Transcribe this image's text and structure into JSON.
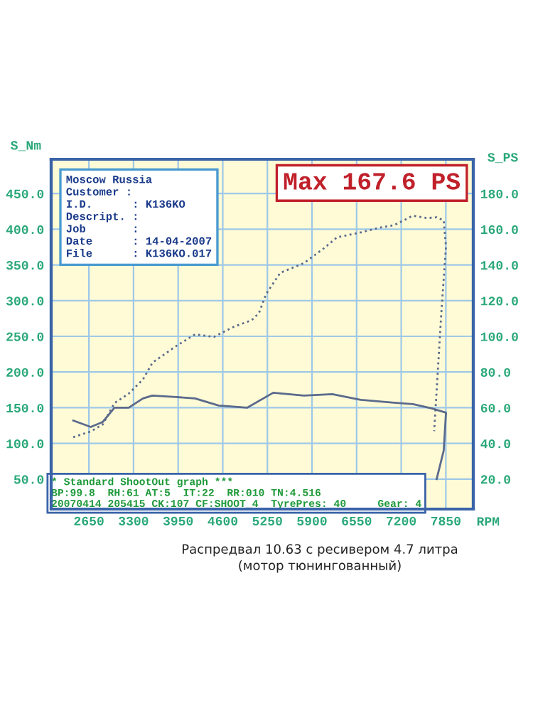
{
  "chart_data": {
    "type": "line",
    "xlabel": "RPM",
    "ylabel": "S_Nm",
    "y2label": "S_PS",
    "xlim": [
      2100,
      8250
    ],
    "xticks": [
      2650,
      3300,
      3950,
      4600,
      5250,
      5900,
      6550,
      7200,
      7850
    ],
    "ylim": [
      8,
      498
    ],
    "yticks": [
      {
        "value": 50,
        "label": "50.0"
      },
      {
        "value": 100,
        "label": "100.0"
      },
      {
        "value": 150,
        "label": "150.0"
      },
      {
        "value": 200,
        "label": "200.0"
      },
      {
        "value": 250,
        "label": "250.0"
      },
      {
        "value": 300,
        "label": "300.0"
      },
      {
        "value": 350,
        "label": "350.0"
      },
      {
        "value": 400,
        "label": "400.0"
      },
      {
        "value": 450,
        "label": "450.0"
      }
    ],
    "y2lim": [
      3.2,
      199.2
    ],
    "y2ticks": [
      {
        "value": 20,
        "label": "20.0"
      },
      {
        "value": 40,
        "label": "40.0"
      },
      {
        "value": 60,
        "label": "60.0"
      },
      {
        "value": 80,
        "label": "80.0"
      },
      {
        "value": 100,
        "label": "100.0"
      },
      {
        "value": 120,
        "label": "120.0"
      },
      {
        "value": 140,
        "label": "140.0"
      },
      {
        "value": 160,
        "label": "160.0"
      },
      {
        "value": 180,
        "label": "180.0"
      }
    ],
    "grid": true,
    "marker": "none",
    "series": [
      {
        "color": "#5b6a8c",
        "axis": "y2",
        "line_style": "dotted",
        "x": [
          2422,
          2677,
          2851,
          3023,
          3230,
          3437,
          3575,
          3919,
          4196,
          4472,
          4747,
          5024,
          5128,
          5231,
          5438,
          5782,
          6059,
          6266,
          6610,
          6887,
          7094,
          7370,
          7577,
          7716,
          7819,
          7852,
          7784,
          7680
        ],
        "values": [
          43.5,
          46.7,
          50.6,
          62.6,
          67.9,
          75.8,
          85.2,
          94.5,
          101.1,
          99.7,
          105.1,
          109.1,
          113.1,
          123.7,
          135.6,
          141.0,
          148.9,
          155.5,
          158.2,
          160.9,
          162.2,
          167.6,
          166.2,
          166.7,
          164.9,
          150.3,
          113.0,
          46.9
        ]
      },
      {
        "color": "#5b6a8c",
        "axis": "y",
        "line_style": "solid",
        "x": [
          2422,
          2677,
          2851,
          3023,
          3230,
          3437,
          3575,
          3919,
          4196,
          4540,
          4954,
          5335,
          5782,
          6196,
          6610,
          7094,
          7370,
          7645,
          7852,
          7819,
          7716
        ],
        "values": [
          132,
          123,
          130,
          150,
          150,
          163,
          167,
          165,
          163,
          153,
          150,
          171,
          167,
          169,
          161,
          157,
          155,
          149,
          143,
          90,
          50
        ]
      }
    ],
    "annotations": [
      "Moscow Russia",
      "Customer :",
      "I.D.      : K136KO",
      "Descript. :",
      "Job       :",
      "Date      : 14-04-2007",
      "File      : K136KO.017",
      "Max 167.6 PS",
      "* Standard ShootOut graph ***",
      "BP:99.8  RH:61 AT:5  IT:22  RR:010 TN:4.516",
      "20070414 205415 CK:107 CF:SHOOT_4  TyrePres: 40     Gear: 4",
      "Распредвал 10.63 с ресивером 4.7 литра",
      "(мотор тюнингованный)"
    ]
  }
}
